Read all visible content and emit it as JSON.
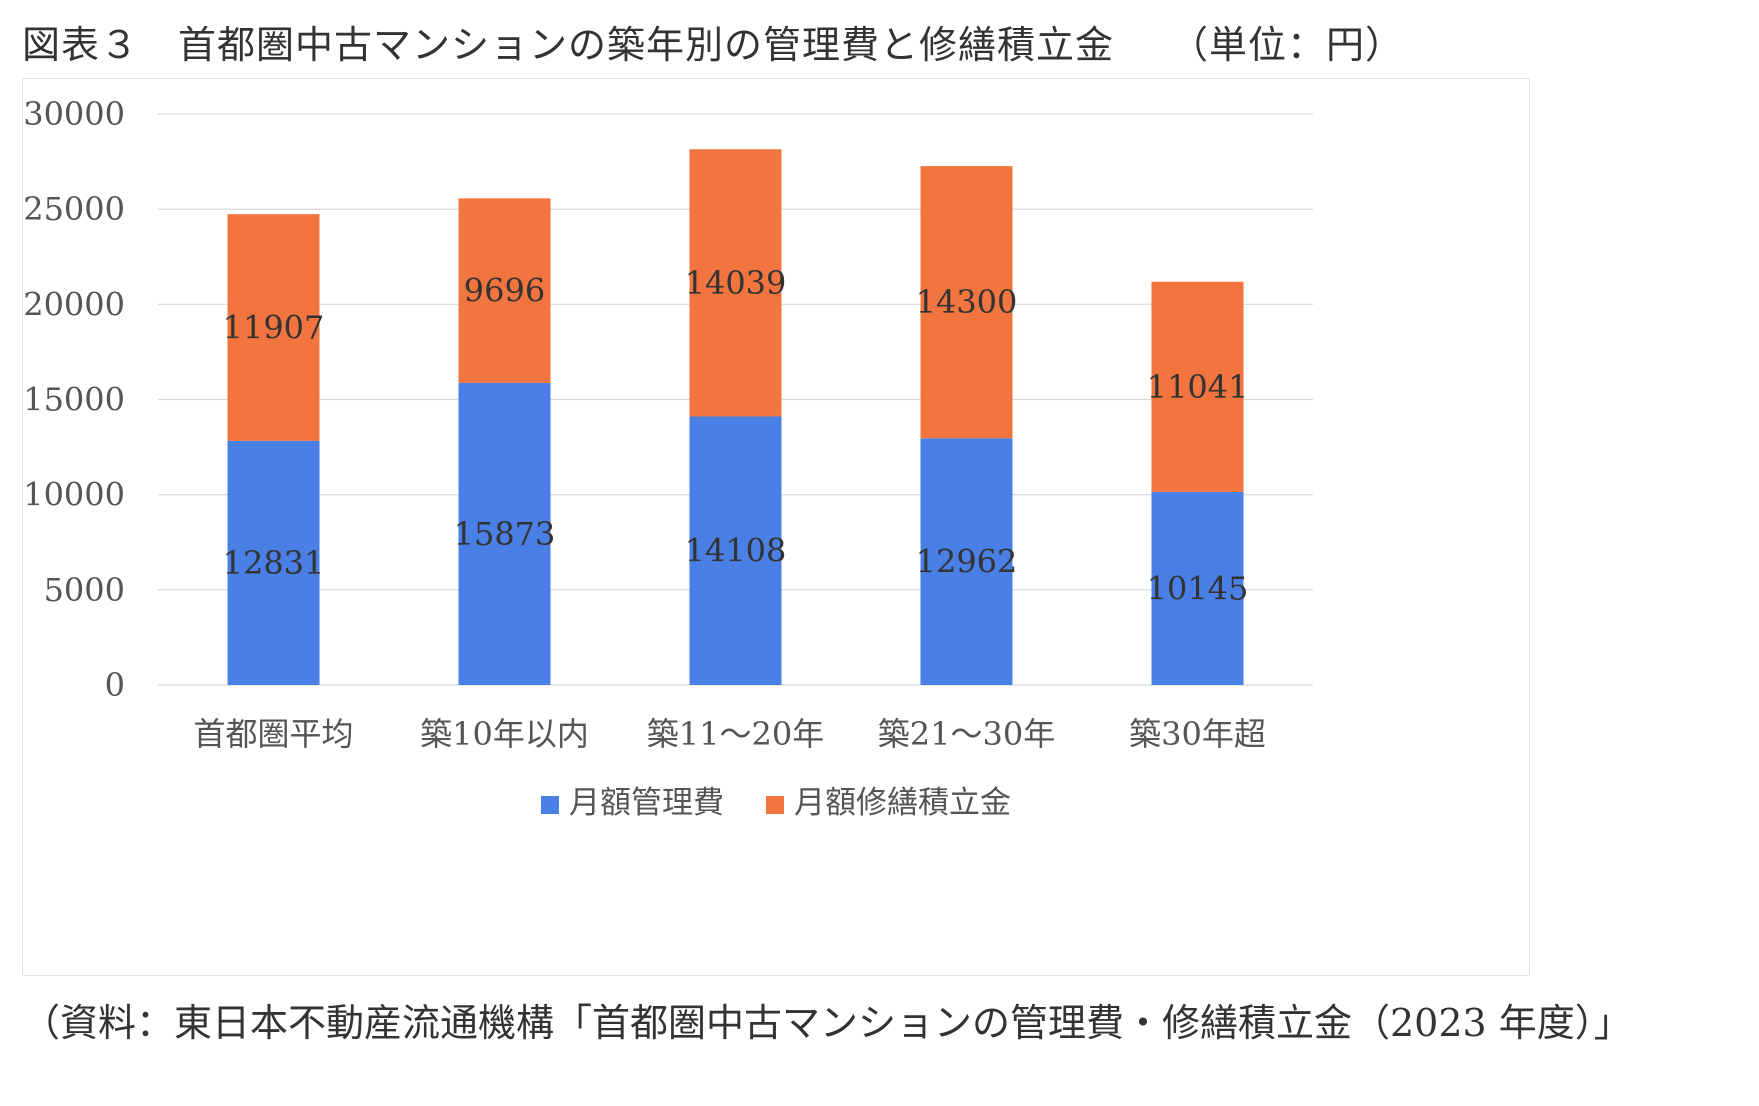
{
  "figure": {
    "title": "図表３　首都圏中古マンションの築年別の管理費と修繕積立金",
    "unit": "（単位：円）",
    "source": "（資料：東日本不動産流通機構「首都圏中古マンションの管理費・修繕積立金（2023 年度）」"
  },
  "chart_data": {
    "type": "bar",
    "stacked": true,
    "title": "",
    "xlabel": "",
    "ylabel": "",
    "categories": [
      "首都圏平均",
      "築10年以内",
      "築11～20年",
      "築21～30年",
      "築30年超"
    ],
    "series": [
      {
        "name": "月額管理費",
        "color": "#4a7fe6",
        "values": [
          12831,
          15873,
          14108,
          12962,
          10145
        ]
      },
      {
        "name": "月額修繕積立金",
        "color": "#f2753f",
        "values": [
          11907,
          9696,
          14039,
          14300,
          11041
        ]
      }
    ],
    "yticks": [
      0,
      5000,
      10000,
      15000,
      20000,
      25000,
      30000
    ],
    "ylim": [
      0,
      30000
    ],
    "grid": true,
    "legend": "bottom"
  }
}
